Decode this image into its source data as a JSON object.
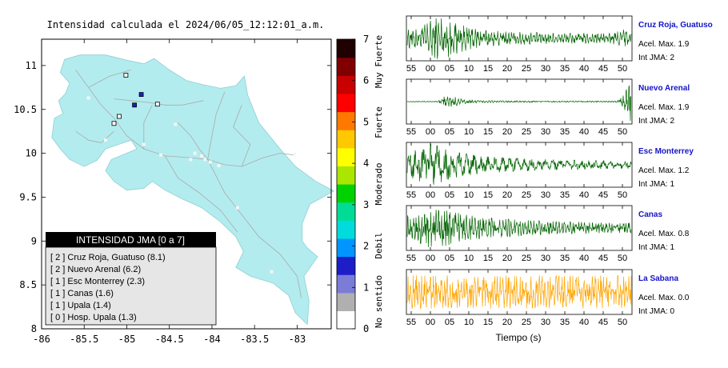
{
  "map": {
    "title": "Intensidad calculada el 2024/06/05_12:12:01_a.m.",
    "x_ticks": [
      "-86",
      "-85.5",
      "-85",
      "-84.5",
      "-84",
      "-83.5",
      "-83"
    ],
    "y_ticks": [
      "11",
      "10.5",
      "10",
      "9.5",
      "9",
      "8.5",
      "8"
    ],
    "colors": {
      "land": "#b3ecee",
      "sea": "#ffffff",
      "roads": "#aaaaaa",
      "intensity_1": "#ffffff",
      "intensity_2": "#1e1ec8"
    }
  },
  "legend": {
    "title": "INTENSIDAD JMA [0 a 7]",
    "items": [
      {
        "text": "[ 2 ]  Cruz Roja, Guatuso (8.1)"
      },
      {
        "text": "[ 2 ]  Nuevo Arenal (6.2)"
      },
      {
        "text": "[ 1 ]  Esc Monterrey (2.3)"
      },
      {
        "text": "[ 1 ]  Canas (1.6)"
      },
      {
        "text": "[ 1 ]  Upala (1.4)"
      },
      {
        "text": "[ 0 ]  Hosp. Upala (1.3)"
      }
    ]
  },
  "colorbar": {
    "ticks": [
      "7",
      "6",
      "5",
      "4",
      "3",
      "2",
      "1",
      "0"
    ],
    "levels": [
      {
        "label": "Muy Fuerte"
      },
      {
        "label": "Fuerte"
      },
      {
        "label": "Moderado"
      },
      {
        "label": "Debil"
      },
      {
        "label": "No sentido"
      }
    ]
  },
  "waveforms": {
    "xlabel": "Tiempo (s)",
    "x_ticks": [
      "55",
      "00",
      "05",
      "10",
      "15",
      "20",
      "25",
      "30",
      "35",
      "40",
      "45",
      "50"
    ],
    "stations": [
      {
        "name": "Cruz Roja, Guatuso",
        "acel": "Acel. Max. 1.9",
        "int": "Int JMA: 2",
        "color": "#006400"
      },
      {
        "name": "Nuevo Arenal",
        "acel": "Acel. Max. 1.9",
        "int": "Int JMA: 2",
        "color": "#006400"
      },
      {
        "name": "Esc Monterrey",
        "acel": "Acel. Max. 1.2",
        "int": "Int JMA: 1",
        "color": "#006400"
      },
      {
        "name": "Canas",
        "acel": "Acel. Max. 0.8",
        "int": "Int JMA: 1",
        "color": "#006400"
      },
      {
        "name": "La Sabana",
        "acel": "Acel. Max. 0.0",
        "int": "Int JMA: 0",
        "color": "#ffa500"
      }
    ]
  },
  "chart_data": [
    {
      "type": "scatter",
      "title": "Intensidad calculada el 2024/06/05_12:12:01_a.m.",
      "xlabel": "",
      "ylabel": "",
      "xlim": [
        -86,
        -82.6
      ],
      "ylim": [
        8,
        11.3
      ],
      "series": [
        {
          "name": "INTENSIDAD JMA [0 a 7]",
          "points": [
            {
              "label": "Cruz Roja, Guatuso",
              "x": -84.83,
              "y": 10.67,
              "intensity": 2
            },
            {
              "label": "Nuevo Arenal",
              "x": -84.91,
              "y": 10.55,
              "intensity": 2
            },
            {
              "label": "Esc Monterrey",
              "x": -84.64,
              "y": 10.56,
              "intensity": 1
            },
            {
              "label": "Canas",
              "x": -85.09,
              "y": 10.42,
              "intensity": 1
            },
            {
              "label": "Upala",
              "x": -85.01,
              "y": 10.89,
              "intensity": 1
            },
            {
              "label": "Hosp. Upala",
              "x": -85.15,
              "y": 10.34,
              "intensity": 0
            }
          ]
        }
      ]
    },
    {
      "type": "heatmap",
      "title": "",
      "orientation": "vertical colorbar",
      "ylim": [
        0,
        7
      ],
      "ticks": [
        0,
        1,
        2,
        3,
        4,
        5,
        6,
        7
      ],
      "colors": [
        "#ffffff",
        "#b0b0b0",
        "#7b7bd8",
        "#1e1ec8",
        "#0096ff",
        "#00dcdc",
        "#00dc96",
        "#00d200",
        "#aae600",
        "#ffff00",
        "#ffc800",
        "#ff7800",
        "#ff0000",
        "#c80000",
        "#800000",
        "#200000"
      ],
      "level_labels": [
        "No sentido",
        "Debil",
        "Moderado",
        "Fuerte",
        "Muy Fuerte"
      ]
    },
    {
      "type": "line",
      "title": "",
      "xlabel": "Tiempo (s)",
      "x_ticks": [
        "55",
        "00",
        "05",
        "10",
        "15",
        "20",
        "25",
        "30",
        "35",
        "40",
        "45",
        "50"
      ],
      "series": [
        {
          "name": "Cruz Roja, Guatuso",
          "acel_max": 1.9,
          "int_jma": 2,
          "color": "#006400",
          "envelope": [
            0.45,
            0.5,
            0.6,
            0.85,
            1.0,
            0.95,
            0.8,
            0.65,
            0.55,
            0.45,
            0.4,
            0.37,
            0.35,
            0.32,
            0.3,
            0.3,
            0.28,
            0.28,
            0.27,
            0.26,
            0.25,
            0.25,
            0.24,
            0.24,
            0.23,
            0.23,
            0.25,
            0.3,
            0.45,
            0.4
          ]
        },
        {
          "name": "Nuevo Arenal",
          "acel_max": 1.9,
          "int_jma": 2,
          "color": "#006400",
          "envelope": [
            0.02,
            0.02,
            0.02,
            0.02,
            0.03,
            0.3,
            0.25,
            0.12,
            0.08,
            0.06,
            0.05,
            0.05,
            0.04,
            0.04,
            0.04,
            0.04,
            0.04,
            0.03,
            0.03,
            0.03,
            0.03,
            0.03,
            0.03,
            0.03,
            0.03,
            0.03,
            0.03,
            0.03,
            0.3,
            1.0
          ]
        },
        {
          "name": "Esc Monterrey",
          "acel_max": 1.2,
          "int_jma": 1,
          "color": "#006400",
          "envelope": [
            0.55,
            0.7,
            0.85,
            1.0,
            0.9,
            0.75,
            0.65,
            0.55,
            0.5,
            0.45,
            0.4,
            0.38,
            0.36,
            0.34,
            0.32,
            0.3,
            0.28,
            0.27,
            0.26,
            0.25,
            0.24,
            0.23,
            0.22,
            0.21,
            0.2,
            0.2,
            0.19,
            0.18,
            0.18,
            0.18
          ]
        },
        {
          "name": "Canas",
          "acel_max": 0.8,
          "int_jma": 1,
          "color": "#006400",
          "envelope": [
            0.6,
            0.7,
            0.85,
            1.0,
            0.95,
            0.85,
            0.75,
            0.7,
            0.62,
            0.55,
            0.5,
            0.48,
            0.45,
            0.42,
            0.4,
            0.38,
            0.37,
            0.35,
            0.34,
            0.32,
            0.3,
            0.3,
            0.29,
            0.28,
            0.27,
            0.26,
            0.25,
            0.25,
            0.25,
            0.25
          ]
        },
        {
          "name": "La Sabana",
          "acel_max": 0.0,
          "int_jma": 0,
          "color": "#ffa500",
          "envelope": [
            0.75,
            0.8,
            0.78,
            0.8,
            0.75,
            0.8,
            0.78,
            0.8,
            0.75,
            0.8,
            0.78,
            0.8,
            0.75,
            0.8,
            0.78,
            0.8,
            0.75,
            0.8,
            0.78,
            0.8,
            0.75,
            0.8,
            0.78,
            0.8,
            0.75,
            0.8,
            0.78,
            0.8,
            0.75,
            0.8
          ]
        }
      ]
    }
  ]
}
